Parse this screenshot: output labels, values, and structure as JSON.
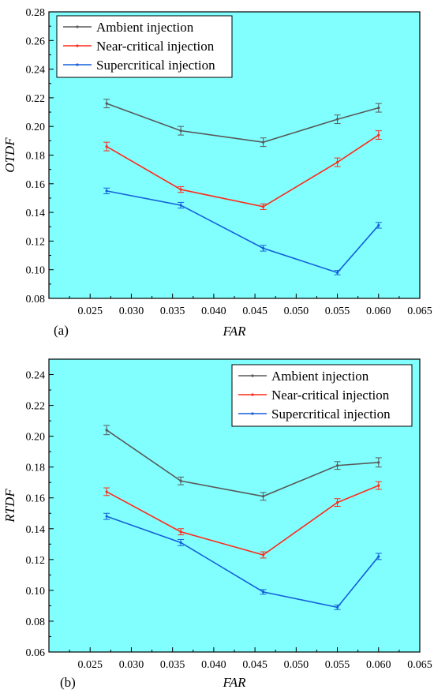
{
  "chart_data": [
    {
      "type": "line",
      "panel_label": "(a)",
      "xlabel": "FAR",
      "ylabel": "OTDF",
      "xlim": [
        0.02,
        0.065
      ],
      "ylim": [
        0.08,
        0.28
      ],
      "x_ticks": [
        "0.025",
        "0.030",
        "0.035",
        "0.040",
        "0.045",
        "0.050",
        "0.055",
        "0.060",
        "0.065"
      ],
      "y_ticks": [
        "0.08",
        "0.10",
        "0.12",
        "0.14",
        "0.16",
        "0.18",
        "0.20",
        "0.22",
        "0.24",
        "0.26",
        "0.28"
      ],
      "background": "#80fffe",
      "legend_position": "top-right",
      "x": [
        0.027,
        0.036,
        0.046,
        0.055,
        0.06
      ],
      "series": [
        {
          "name": "Ambient injection",
          "color": "#595959",
          "values": [
            0.216,
            0.197,
            0.189,
            0.205,
            0.213
          ],
          "errors": [
            0.003,
            0.003,
            0.003,
            0.003,
            0.003
          ]
        },
        {
          "name": "Near-critical injection",
          "color": "#ff2a1a",
          "values": [
            0.186,
            0.156,
            0.144,
            0.175,
            0.194
          ],
          "errors": [
            0.003,
            0.002,
            0.002,
            0.003,
            0.003
          ]
        },
        {
          "name": "Supercritical injection",
          "color": "#1560d8",
          "values": [
            0.155,
            0.145,
            0.115,
            0.098,
            0.131
          ],
          "errors": [
            0.002,
            0.002,
            0.002,
            0.0015,
            0.002
          ]
        }
      ]
    },
    {
      "type": "line",
      "panel_label": "(b)",
      "xlabel": "FAR",
      "ylabel": "RTDF",
      "xlim": [
        0.02,
        0.065
      ],
      "ylim": [
        0.06,
        0.25
      ],
      "x_ticks": [
        "0.025",
        "0.030",
        "0.035",
        "0.040",
        "0.045",
        "0.050",
        "0.055",
        "0.060",
        "0.065"
      ],
      "y_ticks": [
        "0.06",
        "0.08",
        "0.10",
        "0.12",
        "0.14",
        "0.16",
        "0.18",
        "0.20",
        "0.22",
        "0.24"
      ],
      "background": "#80fffe",
      "legend_position": "top-right",
      "x": [
        0.027,
        0.036,
        0.046,
        0.055,
        0.06
      ],
      "series": [
        {
          "name": "Ambient injection",
          "color": "#595959",
          "values": [
            0.204,
            0.171,
            0.161,
            0.181,
            0.183
          ],
          "errors": [
            0.003,
            0.0025,
            0.0025,
            0.0025,
            0.003
          ]
        },
        {
          "name": "Near-critical injection",
          "color": "#ff2a1a",
          "values": [
            0.164,
            0.138,
            0.123,
            0.157,
            0.168
          ],
          "errors": [
            0.0025,
            0.002,
            0.002,
            0.0025,
            0.0025
          ]
        },
        {
          "name": "Supercritical injection",
          "color": "#1560d8",
          "values": [
            0.148,
            0.131,
            0.099,
            0.089,
            0.122
          ],
          "errors": [
            0.002,
            0.002,
            0.0015,
            0.0015,
            0.002
          ]
        }
      ]
    }
  ]
}
